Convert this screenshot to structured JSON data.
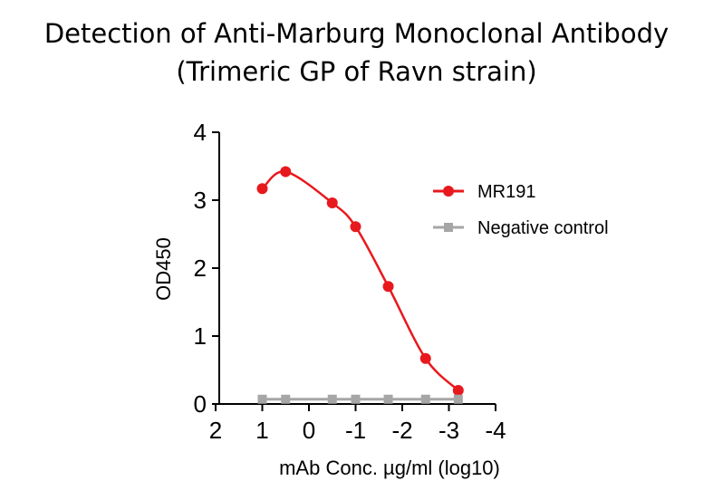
{
  "chart_data": {
    "type": "scatter",
    "title": "Detection of Anti-Marburg Monoclonal Antibody",
    "subtitle": "(Trimeric GP of Ravn strain)",
    "xlabel": "mAb Conc. µg/ml (log10)",
    "ylabel": "OD450",
    "xlim": [
      2,
      -4
    ],
    "ylim": [
      0,
      4
    ],
    "x_reversed": true,
    "xticks": [
      2,
      1,
      0,
      -1,
      -2,
      -3,
      -4
    ],
    "xtick_labels": [
      "2",
      "1",
      "0",
      "-1",
      "-2",
      "-3",
      "-4"
    ],
    "yticks": [
      0,
      1,
      2,
      3,
      4
    ],
    "ytick_labels": [
      "0",
      "1",
      "2",
      "3",
      "4"
    ],
    "legend_position": "top-right",
    "grid": false,
    "series": [
      {
        "name": "MR191",
        "color": "#e8191e",
        "marker": "circle",
        "x": [
          1.0,
          0.5,
          -0.5,
          -1.0,
          -1.7,
          -2.5,
          -3.2
        ],
        "y": [
          3.17,
          3.42,
          2.96,
          2.61,
          1.73,
          0.67,
          0.2
        ],
        "fit_curve": true
      },
      {
        "name": "Negative control",
        "color": "#a6a6a6",
        "marker": "square",
        "x": [
          1.0,
          0.5,
          -0.5,
          -1.0,
          -1.7,
          -2.5,
          -3.2
        ],
        "y": [
          0.07,
          0.07,
          0.07,
          0.07,
          0.07,
          0.07,
          0.07
        ],
        "fit_curve": false
      }
    ]
  }
}
